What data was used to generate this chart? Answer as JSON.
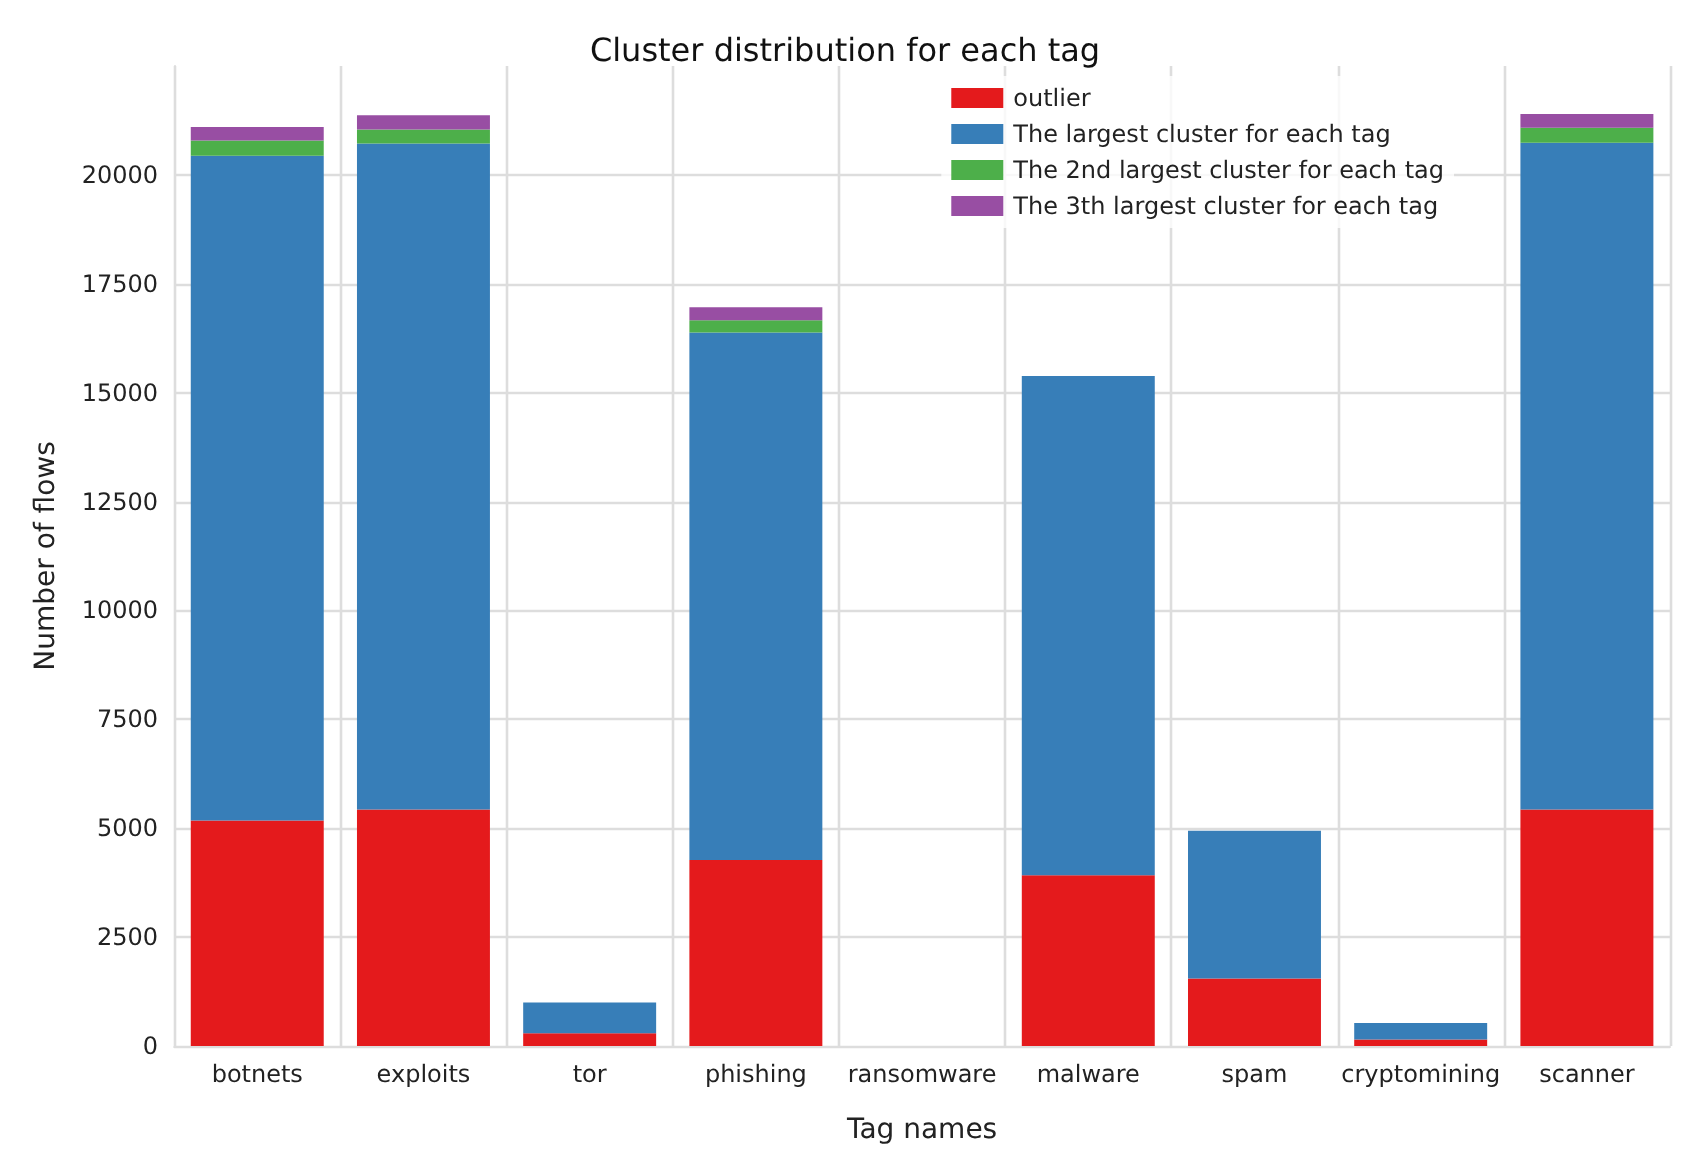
{
  "chart_data": {
    "type": "bar",
    "title": "Cluster distribution for each tag",
    "xlabel": "Tag names",
    "ylabel": "Number of flows",
    "categories": [
      "botnets",
      "exploits",
      "tor",
      "phishing",
      "ransomware",
      "malware",
      "spam",
      "cryptomining",
      "scanner"
    ],
    "stacked": true,
    "series": [
      {
        "name": "outlier",
        "color": "#e41a1c",
        "values": [
          5180,
          5430,
          290,
          4270,
          null,
          3920,
          1550,
          150,
          5430
        ]
      },
      {
        "name": "The largest cluster for each tag",
        "color": "#377eb8",
        "values": [
          15260,
          15290,
          710,
          12110,
          0,
          11460,
          3390,
          380,
          15310
        ]
      },
      {
        "name": "The 2nd largest cluster for each tag",
        "color": "#4daf4a",
        "values": [
          350,
          320,
          0,
          280,
          0,
          0,
          0,
          0,
          340
        ]
      },
      {
        "name": "The 3th largest cluster for each tag",
        "color": "#984ea3",
        "values": [
          310,
          330,
          0,
          300,
          0,
          0,
          0,
          0,
          320
        ]
      }
    ],
    "ylim": [
      0,
      22500
    ],
    "yticks": [
      0,
      2500,
      5000,
      7500,
      10000,
      12500,
      15000,
      17500,
      20000
    ],
    "grid": true,
    "legend": "top right"
  }
}
